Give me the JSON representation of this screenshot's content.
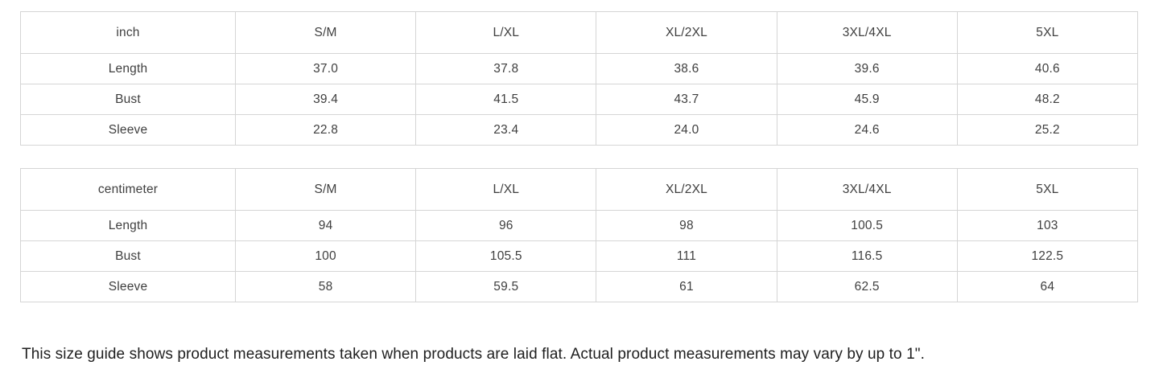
{
  "tables": [
    {
      "unit_label": "inch",
      "columns": [
        "S/M",
        "L/XL",
        "XL/2XL",
        "3XL/4XL",
        "5XL"
      ],
      "rows": [
        {
          "label": "Length",
          "values": [
            "37.0",
            "37.8",
            "38.6",
            "39.6",
            "40.6"
          ]
        },
        {
          "label": "Bust",
          "values": [
            "39.4",
            "41.5",
            "43.7",
            "45.9",
            "48.2"
          ]
        },
        {
          "label": "Sleeve",
          "values": [
            "22.8",
            "23.4",
            "24.0",
            "24.6",
            "25.2"
          ]
        }
      ]
    },
    {
      "unit_label": "centimeter",
      "columns": [
        "S/M",
        "L/XL",
        "XL/2XL",
        "3XL/4XL",
        "5XL"
      ],
      "rows": [
        {
          "label": "Length",
          "values": [
            "94",
            "96",
            "98",
            "100.5",
            "103"
          ]
        },
        {
          "label": "Bust",
          "values": [
            "100",
            "105.5",
            "111",
            "116.5",
            "122.5"
          ]
        },
        {
          "label": "Sleeve",
          "values": [
            "58",
            "59.5",
            "61",
            "62.5",
            "64"
          ]
        }
      ]
    }
  ],
  "footer_note": "This size guide shows product measurements taken when products are laid flat. Actual product measurements may vary by up to 1\".",
  "colors": {
    "background": "#ffffff",
    "border": "#d5d5d5",
    "table_text": "#3f3f3f",
    "note_text": "#1f1f1f"
  }
}
